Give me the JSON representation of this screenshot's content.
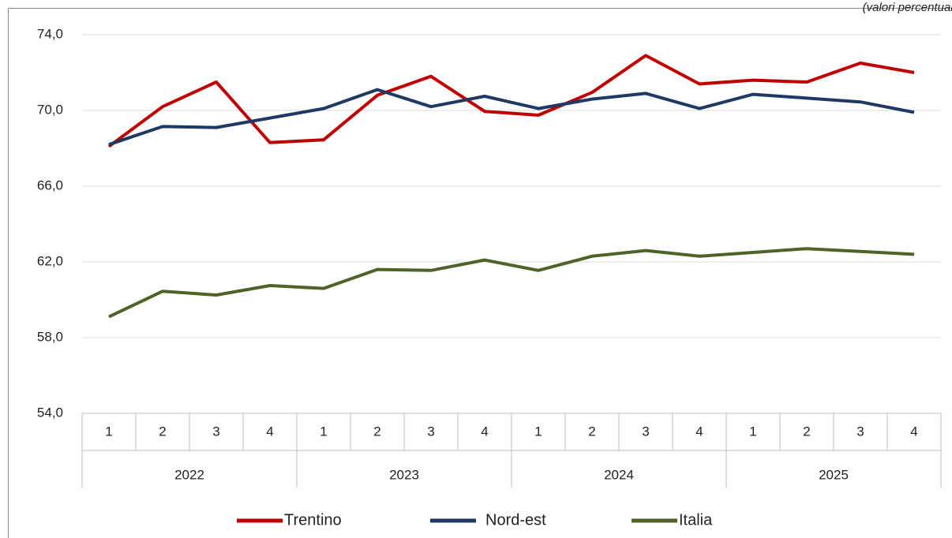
{
  "chart_data": {
    "type": "line",
    "subtitle": "(valori percentuali)",
    "categories": [
      "1",
      "2",
      "3",
      "4",
      "1",
      "2",
      "3",
      "4",
      "1",
      "2",
      "3",
      "4",
      "1",
      "2",
      "3",
      "4"
    ],
    "category_groups": [
      "2022",
      "2023",
      "2024",
      "2025"
    ],
    "series": [
      {
        "name": "Trentino",
        "color": "#c00000",
        "values": [
          68.1,
          70.2,
          71.5,
          68.3,
          68.45,
          70.8,
          71.8,
          69.95,
          69.75,
          70.95,
          72.9,
          71.4,
          71.6,
          71.5,
          72.5,
          72.0
        ]
      },
      {
        "name": "Nord-est",
        "color": "#1f3864",
        "values": [
          68.2,
          69.15,
          69.1,
          69.6,
          70.1,
          71.1,
          70.2,
          70.75,
          70.1,
          70.6,
          70.9,
          70.1,
          70.85,
          70.65,
          70.45,
          69.9
        ]
      },
      {
        "name": "Italia",
        "color": "#4f6228",
        "values": [
          59.1,
          60.45,
          60.25,
          60.75,
          60.6,
          61.6,
          61.55,
          62.1,
          61.55,
          62.3,
          62.6,
          62.3,
          62.5,
          62.7,
          62.55,
          62.4
        ]
      }
    ],
    "ylim": [
      54,
      74
    ],
    "yticks": [
      {
        "value": 54,
        "label": "54,0"
      },
      {
        "value": 58,
        "label": "58,0"
      },
      {
        "value": 62,
        "label": "62,0"
      },
      {
        "value": 66,
        "label": "66,0"
      },
      {
        "value": 70,
        "label": "70,0"
      },
      {
        "value": 74,
        "label": "74,0"
      }
    ],
    "grid": true,
    "legend": "bottom"
  }
}
